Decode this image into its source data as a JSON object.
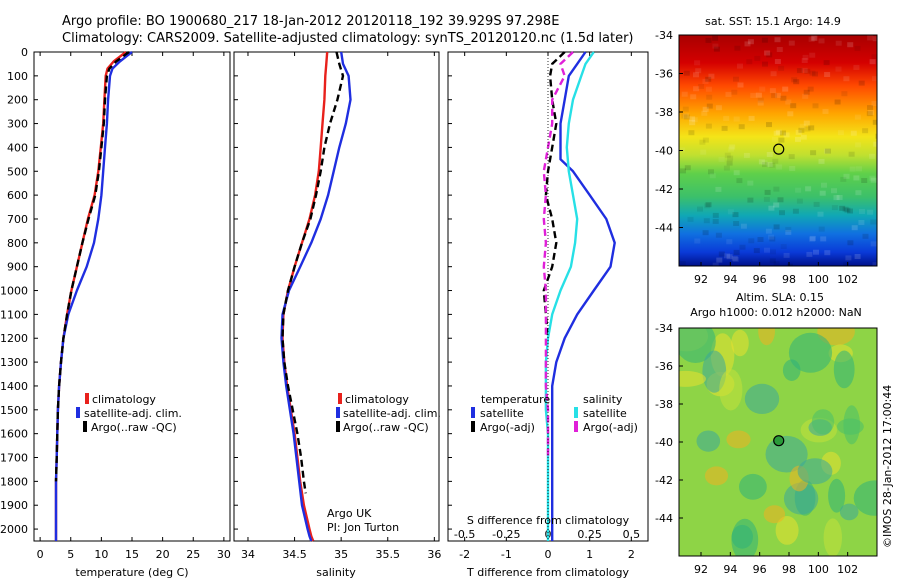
{
  "header": {
    "title_line1": "Argo profile: BO 1900680_217 18-Jan-2012 20120118_192 39.929S 97.298E",
    "title_line2": "Climatology: CARS2009. Satellite-adjusted climatology: synTS_20120120.nc (1.5d later)"
  },
  "colors": {
    "climatology": "#e8211c",
    "satellite": "#1f2ee0",
    "argo": "#000000",
    "sal_satellite": "#27e0e6",
    "sal_argo": "#e020d8"
  },
  "chart_data": [
    {
      "type": "line",
      "name": "temperature",
      "xlabel": "temperature (deg C)",
      "ylabel": "",
      "xlim": [
        -1,
        31
      ],
      "ylim": [
        2050,
        0
      ],
      "xticks": [
        0,
        5,
        10,
        15,
        20,
        25,
        30
      ],
      "yticks": [
        0,
        100,
        200,
        300,
        400,
        500,
        600,
        700,
        800,
        900,
        1000,
        1100,
        1200,
        1300,
        1400,
        1500,
        1600,
        1700,
        1800,
        1900,
        2000
      ],
      "legend": {
        "placement": "lower-left",
        "entries": [
          "climatology",
          "satellite-adj. clim.",
          "Argo(..raw -QC)"
        ]
      },
      "series": [
        {
          "name": "climatology",
          "color": "#e8211c",
          "dash": "solid",
          "x": [
            14.0,
            12.0,
            11.0,
            10.7,
            10.5,
            10.3,
            9.9,
            9.5,
            8.9,
            7.8,
            6.9,
            6.0,
            5.1,
            4.4,
            3.8,
            3.4,
            3.1,
            2.9,
            2.8,
            2.7,
            2.6,
            2.6,
            2.6
          ],
          "y": [
            0,
            40,
            70,
            100,
            200,
            300,
            400,
            500,
            600,
            700,
            800,
            900,
            1000,
            1100,
            1200,
            1300,
            1400,
            1500,
            1600,
            1700,
            1800,
            1900,
            2050
          ]
        },
        {
          "name": "satellite-adj. clim.",
          "color": "#1f2ee0",
          "dash": "solid",
          "x": [
            15.0,
            13.0,
            11.8,
            11.4,
            11.1,
            10.9,
            10.6,
            10.3,
            10.0,
            9.5,
            8.8,
            7.6,
            6.0,
            4.6,
            3.8,
            3.4,
            3.1,
            2.9,
            2.8,
            2.7,
            2.6,
            2.6,
            2.6
          ],
          "y": [
            0,
            40,
            70,
            100,
            200,
            300,
            400,
            500,
            600,
            700,
            800,
            900,
            1000,
            1100,
            1200,
            1300,
            1400,
            1500,
            1600,
            1700,
            1800,
            1900,
            2050
          ]
        },
        {
          "name": "Argo(..raw -QC)",
          "color": "#000000",
          "dash": "dashed",
          "x": [
            14.5,
            12.4,
            11.3,
            10.9,
            10.6,
            10.4,
            10.0,
            9.6,
            9.0,
            7.9,
            6.9,
            6.0,
            5.1,
            4.4,
            3.8,
            3.4,
            3.1,
            2.9,
            2.8,
            2.7,
            2.6
          ],
          "y": [
            0,
            40,
            70,
            100,
            200,
            300,
            400,
            500,
            600,
            700,
            800,
            900,
            1000,
            1100,
            1200,
            1300,
            1400,
            1500,
            1600,
            1700,
            1800
          ]
        }
      ]
    },
    {
      "type": "line",
      "name": "salinity",
      "xlabel": "salinity",
      "ylabel": "",
      "xlim": [
        33.85,
        36.05
      ],
      "ylim": [
        2050,
        0
      ],
      "xticks": [
        34,
        34.5,
        35,
        35.5,
        36
      ],
      "xticklabels": [
        "34",
        "34.5",
        "35",
        "35.5",
        "36"
      ],
      "legend": {
        "placement": "lower-right",
        "entries": [
          "climatology",
          "satellite-adj. clim.",
          "Argo(..raw -QC)"
        ]
      },
      "annotation": {
        "line1": "Argo UK",
        "line2": "PI: Jon Turton"
      },
      "series": [
        {
          "name": "climatology",
          "color": "#e8211c",
          "dash": "solid",
          "x": [
            34.85,
            34.84,
            34.83,
            34.82,
            34.8,
            34.78,
            34.76,
            34.72,
            34.66,
            34.58,
            34.5,
            34.43,
            34.38,
            34.37,
            34.39,
            34.42,
            34.46,
            34.5,
            34.53,
            34.56,
            34.6,
            34.63,
            34.66,
            34.68,
            34.7
          ],
          "y": [
            0,
            50,
            100,
            200,
            300,
            400,
            500,
            600,
            700,
            800,
            900,
            1000,
            1100,
            1200,
            1300,
            1400,
            1500,
            1600,
            1700,
            1800,
            1900,
            1950,
            2000,
            2030,
            2050
          ]
        },
        {
          "name": "satellite-adj. clim.",
          "color": "#1f2ee0",
          "dash": "solid",
          "x": [
            35.0,
            35.02,
            35.08,
            35.1,
            35.05,
            34.98,
            34.92,
            34.86,
            34.78,
            34.68,
            34.56,
            34.44,
            34.37,
            34.36,
            34.38,
            34.41,
            34.45,
            34.49,
            34.52,
            34.55,
            34.58,
            34.61,
            34.64,
            34.66,
            34.68
          ],
          "y": [
            0,
            50,
            100,
            200,
            300,
            400,
            500,
            600,
            700,
            800,
            900,
            1000,
            1100,
            1200,
            1300,
            1400,
            1500,
            1600,
            1700,
            1800,
            1900,
            1950,
            2000,
            2030,
            2050
          ]
        },
        {
          "name": "Argo(..raw -QC)",
          "color": "#000000",
          "dash": "dashed",
          "x": [
            34.95,
            34.98,
            35.02,
            34.96,
            34.88,
            34.82,
            34.78,
            34.73,
            34.67,
            34.58,
            34.5,
            34.43,
            34.38,
            34.37,
            34.39,
            34.43,
            34.48,
            34.53,
            34.57,
            34.6,
            34.62
          ],
          "y": [
            0,
            50,
            100,
            200,
            300,
            400,
            500,
            600,
            700,
            800,
            900,
            1000,
            1100,
            1200,
            1300,
            1400,
            1500,
            1600,
            1700,
            1800,
            1850
          ]
        }
      ]
    },
    {
      "type": "line",
      "name": "difference from climatology",
      "xlabel": "T difference from climatology",
      "xlim": [
        -2.4,
        2.4
      ],
      "ylim": [
        2050,
        0
      ],
      "xticks": [
        -2,
        -1,
        0,
        1,
        2
      ],
      "secondary_xlabel": "S difference from climatology",
      "secondary_xticklabels": [
        "-0.5",
        "-0.25",
        "0",
        "0.25",
        "0.5"
      ],
      "legend": {
        "placement": "lower",
        "group_titles": [
          "temperature",
          "salinity"
        ],
        "entries": [
          "satellite",
          "Argo(-adj)",
          "satellite",
          "Argo(-adj)"
        ]
      },
      "series": [
        {
          "name": "temperature satellite",
          "color": "#1f2ee0",
          "dash": "solid",
          "x": [
            0.9,
            0.7,
            0.5,
            0.4,
            0.3,
            0.3,
            0.3,
            0.6,
            1.0,
            1.4,
            1.6,
            1.5,
            1.1,
            0.7,
            0.4,
            0.2,
            0.1,
            0.1,
            0.1,
            0.1,
            0.1,
            0.1
          ],
          "y": [
            0,
            50,
            100,
            200,
            300,
            400,
            450,
            500,
            600,
            700,
            800,
            900,
            1000,
            1100,
            1200,
            1300,
            1400,
            1500,
            1600,
            1700,
            1800,
            2050
          ]
        },
        {
          "name": "temperature Argo(-adj)",
          "color": "#000000",
          "dash": "dashed",
          "x": [
            0.4,
            0.1,
            0.05,
            0.1,
            0.2,
            0.1,
            0.0,
            -0.05,
            0.1,
            0.2,
            0.1,
            -0.1,
            -0.05,
            0.0
          ],
          "y": [
            0,
            50,
            100,
            200,
            300,
            400,
            500,
            600,
            700,
            800,
            900,
            1000,
            1100,
            1200
          ]
        },
        {
          "name": "salinity satellite",
          "color": "#27e0e6",
          "dash": "solid",
          "x": [
            1.1,
            0.9,
            0.8,
            0.6,
            0.5,
            0.45,
            0.5,
            0.6,
            0.7,
            0.65,
            0.55,
            0.3,
            0.1,
            0.0,
            -0.05,
            -0.05,
            -0.05,
            0.0,
            0.0,
            0.0,
            0.0
          ],
          "y": [
            0,
            50,
            100,
            200,
            300,
            400,
            500,
            600,
            700,
            800,
            900,
            1000,
            1100,
            1200,
            1300,
            1400,
            1500,
            1600,
            1700,
            1800,
            2050
          ]
        },
        {
          "name": "salinity Argo(-adj)",
          "color": "#e020d8",
          "dash": "dashed",
          "x": [
            0.6,
            0.3,
            0.4,
            0.1,
            0.1,
            0.0,
            -0.1,
            -0.05,
            -0.1,
            -0.05,
            -0.1,
            -0.05,
            -0.05,
            -0.05,
            -0.05,
            -0.05,
            0.0,
            0.0,
            0.0
          ],
          "y": [
            0,
            50,
            100,
            200,
            300,
            400,
            500,
            600,
            700,
            800,
            900,
            1000,
            1100,
            1200,
            1300,
            1400,
            1500,
            1600,
            1700
          ]
        }
      ]
    },
    {
      "type": "heatmap",
      "name": "sst map",
      "title": "sat. SST: 15.1  Argo: 14.9",
      "xlim": [
        90.5,
        104
      ],
      "ylim": [
        -46,
        -34
      ],
      "xticks": [
        92,
        94,
        96,
        98,
        100,
        102
      ],
      "yticks": [
        -34,
        -36,
        -38,
        -40,
        -42,
        -44
      ],
      "marker": {
        "lon": 97.3,
        "lat": -39.93
      }
    },
    {
      "type": "heatmap",
      "name": "sla map",
      "title_line1": "Altim. SLA: 0.15",
      "title_line2": "Argo h1000: 0.012 h2000: NaN",
      "xlim": [
        90.5,
        104
      ],
      "ylim": [
        -46,
        -34
      ],
      "xticks": [
        92,
        94,
        96,
        98,
        100,
        102
      ],
      "yticks": [
        -34,
        -36,
        -38,
        -40,
        -42,
        -44
      ],
      "marker": {
        "lon": 97.3,
        "lat": -39.93
      }
    }
  ],
  "footer": {
    "credit": "©IMOS 28-Jan-2012 17:00:44"
  }
}
